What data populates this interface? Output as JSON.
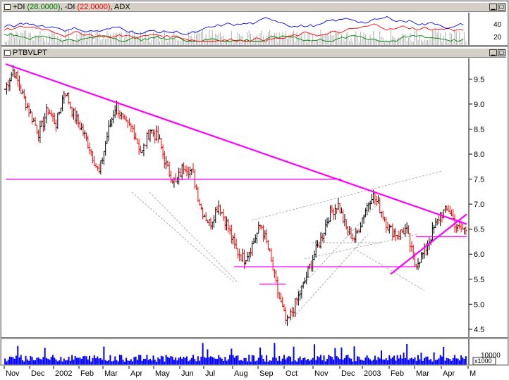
{
  "indicator_panel": {
    "title_plus_di": "+DI",
    "plus_di_value": "(28.0000)",
    "title_minus_di": ", -DI",
    "minus_di_value": "(22.0000)",
    "title_adx": ", ADX",
    "y_ticks": [
      "40",
      "20"
    ]
  },
  "price_panel": {
    "title": "PTBVLPT",
    "y_ticks": [
      "9.5",
      "9.0",
      "8.5",
      "8.0",
      "7.5",
      "7.0",
      "6.5",
      "6.0",
      "5.5",
      "5.0",
      "4.5"
    ]
  },
  "volume_panel": {
    "y_tick": "10000",
    "unit_label": "x1000"
  },
  "x_axis": {
    "labels": [
      "Nov",
      "Dec",
      "2002",
      "Feb",
      "Mar",
      "Apr",
      "May",
      "Jun",
      "Jul",
      "Aug",
      "Sep",
      "Oct",
      "Nov",
      "Dec",
      "2003",
      "Feb",
      "Mar",
      "Apr",
      "M"
    ]
  },
  "colors": {
    "up_bar": "#000000",
    "down_bar": "#ff0000",
    "trendline": "#ff00ff",
    "volume": "#0000ff",
    "plus_di": "#008000",
    "minus_di": "#ff0000",
    "adx": "#0000ff"
  },
  "chart_data": {
    "type": "line",
    "title": "PTBVLPT",
    "x_range": [
      "Nov 2001",
      "May 2003"
    ],
    "ylim": [
      4.4,
      9.8
    ],
    "series": [
      {
        "values": [
          9.3,
          9.7,
          9.2,
          8.8,
          8.4,
          8.9,
          8.6,
          9.3,
          8.8,
          8.5,
          8.1,
          7.6,
          8.4,
          9.0,
          8.6,
          8.5,
          8.0,
          8.5,
          8.3,
          7.7,
          7.4,
          7.8,
          7.6,
          6.9,
          6.6,
          7.0,
          6.6,
          6.1,
          5.9,
          6.2,
          6.6,
          6.0,
          5.2,
          4.6,
          5.0,
          5.4,
          5.9,
          6.3,
          6.8,
          7.0,
          6.5,
          6.3,
          6.8,
          7.2,
          6.9,
          6.5,
          6.4,
          6.5,
          5.8,
          6.0,
          6.4,
          6.8,
          6.9,
          6.5,
          6.5
        ]
      }
    ],
    "trendlines": [
      {
        "from": [
          "Nov 2001",
          9.8
        ],
        "to": [
          "Apr 2003",
          6.6
        ]
      },
      {
        "from": [
          "Nov 2001",
          7.5
        ],
        "to": [
          "Dec 2002",
          7.5
        ]
      },
      {
        "from": [
          "Aug 2002",
          5.75
        ],
        "to": [
          "Mar 2003",
          5.75
        ]
      },
      {
        "from": [
          "Sep 2002",
          5.4
        ],
        "to": [
          "Oct 2002",
          5.4
        ]
      },
      {
        "from": [
          "Feb 2003",
          5.6
        ],
        "to": [
          "Apr 2003",
          6.8
        ]
      },
      {
        "from": [
          "Mar 2003",
          6.35
        ],
        "to": [
          "Apr 2003",
          6.35
        ]
      }
    ],
    "indicator": {
      "plus_di": 28.0,
      "minus_di": 22.0,
      "yticks": [
        40,
        20
      ]
    },
    "volume": {
      "ytick": 10000,
      "unit": "x1000"
    },
    "grid": false
  }
}
